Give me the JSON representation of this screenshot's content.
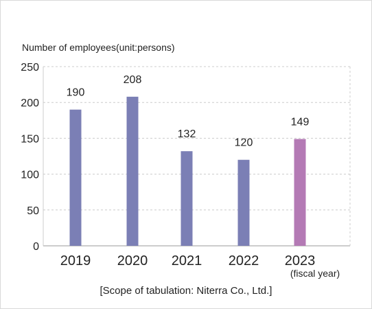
{
  "chart_data": {
    "type": "bar",
    "title": "",
    "ylabel": "Number of employees(unit:persons)",
    "xlabel": "",
    "x_unit_note": "(fiscal year)",
    "categories": [
      "2019",
      "2020",
      "2021",
      "2022",
      "2023"
    ],
    "values": [
      190,
      208,
      132,
      120,
      149
    ],
    "bar_colors": [
      "#7b7fb5",
      "#7b7fb5",
      "#7b7fb5",
      "#7b7fb5",
      "#b47ab5"
    ],
    "yticks": [
      "250",
      "200",
      "150",
      "100",
      "50",
      "0"
    ],
    "ylim": [
      0,
      250
    ],
    "grid": true,
    "legend": "none"
  },
  "footer": {
    "scope": "[Scope of tabulation: Niterra Co., Ltd.]"
  }
}
